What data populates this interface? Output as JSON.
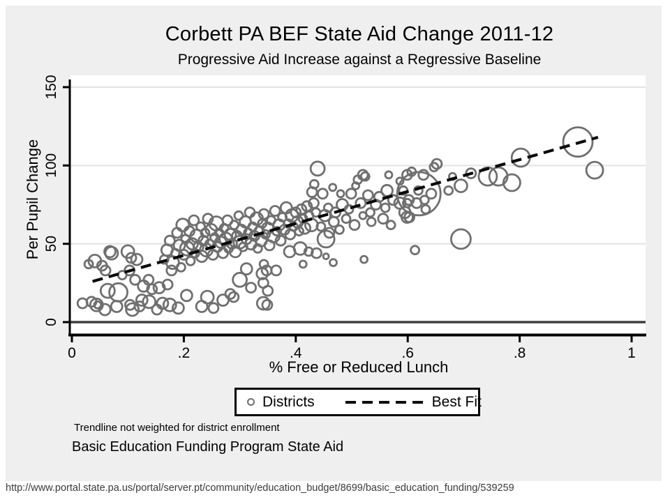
{
  "header": {
    "title": "Corbett PA BEF State Aid Change 2011-12",
    "subtitle": "Progressive Aid Increase against a Regressive Baseline"
  },
  "notes": {
    "line1": "Trendline not weighted for district enrollment",
    "line2": "Basic Education Funding Program State Aid"
  },
  "footer": {
    "url": "http://www.portal.state.pa.us/portal/server.pt/community/education_budget/8699/basic_education_funding/539259"
  },
  "colors": {
    "panel_background": "#efefef",
    "plot_background": "#ffffff",
    "marker": "#6f6f6f",
    "gridline": "#e2e2e2",
    "zero_line": "#3f3f3f",
    "axis": "#000000",
    "trendline": "#0a0a0a"
  },
  "chart_data": {
    "type": "scatter",
    "title": "Corbett PA BEF State Aid Change 2011-12",
    "subtitle": "Progressive Aid Increase against a Regressive Baseline",
    "xlabel": "% Free or Reduced Lunch",
    "ylabel": "Per Pupil Change",
    "xlim": [
      0,
      1
    ],
    "ylim": [
      0,
      150
    ],
    "x_ticks": [
      {
        "v": 0,
        "label": "0"
      },
      {
        "v": 0.2,
        "label": ".2"
      },
      {
        "v": 0.4,
        "label": ".4"
      },
      {
        "v": 0.6,
        "label": ".6"
      },
      {
        "v": 0.8,
        "label": ".8"
      },
      {
        "v": 1,
        "label": "1"
      }
    ],
    "y_ticks": [
      {
        "v": 0,
        "label": "0"
      },
      {
        "v": 50,
        "label": "50"
      },
      {
        "v": 100,
        "label": "100"
      },
      {
        "v": 150,
        "label": "150"
      }
    ],
    "grid": "horizontal-light",
    "marker_color": "#6f6f6f",
    "marker_note": "hollow circles, size proportional to district enrollment; values are [x_fraction, per_pupil_change, radius_px]",
    "points": [
      [
        0.019,
        12,
        7
      ],
      [
        0.03,
        37,
        6
      ],
      [
        0.035,
        13,
        7
      ],
      [
        0.041,
        39,
        9
      ],
      [
        0.044,
        11,
        9
      ],
      [
        0.046,
        11,
        5
      ],
      [
        0.054,
        36,
        7
      ],
      [
        0.059,
        8,
        8
      ],
      [
        0.06,
        33,
        7
      ],
      [
        0.064,
        20,
        10
      ],
      [
        0.068,
        45,
        8
      ],
      [
        0.071,
        44,
        9
      ],
      [
        0.08,
        10,
        8
      ],
      [
        0.083,
        19,
        13
      ],
      [
        0.09,
        30,
        6
      ],
      [
        0.1,
        45,
        9
      ],
      [
        0.103,
        33,
        7
      ],
      [
        0.104,
        11,
        7
      ],
      [
        0.106,
        41,
        7
      ],
      [
        0.108,
        8,
        9
      ],
      [
        0.113,
        27,
        7
      ],
      [
        0.116,
        40,
        8
      ],
      [
        0.121,
        10,
        7
      ],
      [
        0.125,
        14,
        8
      ],
      [
        0.128,
        23,
        8
      ],
      [
        0.137,
        27,
        7
      ],
      [
        0.138,
        13,
        9
      ],
      [
        0.143,
        21,
        7
      ],
      [
        0.152,
        8,
        7
      ],
      [
        0.156,
        22,
        8
      ],
      [
        0.162,
        12,
        8
      ],
      [
        0.171,
        24,
        7
      ],
      [
        0.175,
        11,
        9
      ],
      [
        0.178,
        33,
        7
      ],
      [
        0.19,
        9,
        8
      ],
      [
        0.165,
        40,
        6
      ],
      [
        0.17,
        46,
        8
      ],
      [
        0.175,
        52,
        7
      ],
      [
        0.18,
        38,
        9
      ],
      [
        0.185,
        44,
        6
      ],
      [
        0.188,
        57,
        7
      ],
      [
        0.192,
        49,
        8
      ],
      [
        0.195,
        35,
        6
      ],
      [
        0.198,
        62,
        9
      ],
      [
        0.2,
        43,
        7
      ],
      [
        0.203,
        53,
        6
      ],
      [
        0.206,
        47,
        10
      ],
      [
        0.21,
        58,
        7
      ],
      [
        0.212,
        39,
        6
      ],
      [
        0.215,
        50,
        8
      ],
      [
        0.218,
        65,
        7
      ],
      [
        0.22,
        44,
        6
      ],
      [
        0.223,
        55,
        9
      ],
      [
        0.226,
        48,
        7
      ],
      [
        0.23,
        61,
        6
      ],
      [
        0.232,
        42,
        8
      ],
      [
        0.235,
        52,
        7
      ],
      [
        0.238,
        57,
        6
      ],
      [
        0.24,
        46,
        9
      ],
      [
        0.243,
        66,
        7
      ],
      [
        0.246,
        50,
        6
      ],
      [
        0.249,
        59,
        8
      ],
      [
        0.252,
        43,
        7
      ],
      [
        0.255,
        54,
        6
      ],
      [
        0.258,
        63,
        10
      ],
      [
        0.26,
        48,
        7
      ],
      [
        0.263,
        57,
        6
      ],
      [
        0.266,
        51,
        8
      ],
      [
        0.27,
        44,
        7
      ],
      [
        0.272,
        60,
        6
      ],
      [
        0.275,
        53,
        9
      ],
      [
        0.278,
        65,
        7
      ],
      [
        0.28,
        47,
        6
      ],
      [
        0.283,
        56,
        8
      ],
      [
        0.286,
        50,
        7
      ],
      [
        0.29,
        62,
        6
      ],
      [
        0.292,
        45,
        8
      ],
      [
        0.295,
        55,
        7
      ],
      [
        0.298,
        68,
        6
      ],
      [
        0.3,
        51,
        9
      ],
      [
        0.303,
        59,
        7
      ],
      [
        0.306,
        48,
        6
      ],
      [
        0.31,
        64,
        8
      ],
      [
        0.312,
        53,
        7
      ],
      [
        0.315,
        57,
        6
      ],
      [
        0.318,
        70,
        7
      ],
      [
        0.32,
        50,
        8
      ],
      [
        0.323,
        61,
        6
      ],
      [
        0.326,
        55,
        7
      ],
      [
        0.33,
        66,
        9
      ],
      [
        0.332,
        47,
        6
      ],
      [
        0.335,
        58,
        7
      ],
      [
        0.338,
        52,
        8
      ],
      [
        0.34,
        63,
        6
      ],
      [
        0.343,
        69,
        7
      ],
      [
        0.346,
        56,
        6
      ],
      [
        0.35,
        60,
        8
      ],
      [
        0.353,
        49,
        7
      ],
      [
        0.356,
        65,
        6
      ],
      [
        0.36,
        55,
        9
      ],
      [
        0.363,
        71,
        7
      ],
      [
        0.366,
        58,
        6
      ],
      [
        0.37,
        62,
        8
      ],
      [
        0.373,
        52,
        7
      ],
      [
        0.376,
        67,
        6
      ],
      [
        0.38,
        59,
        7
      ],
      [
        0.383,
        73,
        8
      ],
      [
        0.386,
        63,
        6
      ],
      [
        0.39,
        56,
        7
      ],
      [
        0.393,
        68,
        9
      ],
      [
        0.396,
        61,
        6
      ],
      [
        0.4,
        70,
        7
      ],
      [
        0.403,
        64,
        8
      ],
      [
        0.406,
        58,
        6
      ],
      [
        0.41,
        72,
        7
      ],
      [
        0.413,
        66,
        6
      ],
      [
        0.416,
        60,
        8
      ],
      [
        0.42,
        74,
        7
      ],
      [
        0.424,
        68,
        6
      ],
      [
        0.428,
        62,
        9
      ],
      [
        0.432,
        76,
        7
      ],
      [
        0.436,
        70,
        6
      ],
      [
        0.205,
        17,
        8
      ],
      [
        0.232,
        10,
        8
      ],
      [
        0.242,
        16,
        9
      ],
      [
        0.253,
        9,
        7
      ],
      [
        0.27,
        14,
        8
      ],
      [
        0.283,
        18,
        7
      ],
      [
        0.289,
        16,
        7
      ],
      [
        0.3,
        27,
        10
      ],
      [
        0.312,
        34,
        8
      ],
      [
        0.32,
        22,
        7
      ],
      [
        0.34,
        31,
        8
      ],
      [
        0.342,
        12,
        9
      ],
      [
        0.349,
        11,
        7
      ],
      [
        0.35,
        20,
        7
      ],
      [
        0.365,
        33,
        7
      ],
      [
        0.342,
        25,
        7
      ],
      [
        0.439,
        98,
        10
      ],
      [
        0.433,
        88,
        6
      ],
      [
        0.429,
        83,
        7
      ],
      [
        0.448,
        82,
        7
      ],
      [
        0.466,
        86,
        5
      ],
      [
        0.48,
        82,
        5
      ],
      [
        0.499,
        82,
        7
      ],
      [
        0.511,
        91,
        6
      ],
      [
        0.52,
        94,
        7
      ],
      [
        0.524,
        93,
        6
      ],
      [
        0.507,
        87,
        5
      ],
      [
        0.529,
        81,
        7
      ],
      [
        0.549,
        80,
        7
      ],
      [
        0.563,
        84,
        8
      ],
      [
        0.574,
        78,
        7
      ],
      [
        0.586,
        76,
        8
      ],
      [
        0.595,
        70,
        8
      ],
      [
        0.603,
        67,
        7
      ],
      [
        0.56,
        73,
        6
      ],
      [
        0.543,
        75,
        7
      ],
      [
        0.533,
        70,
        6
      ],
      [
        0.516,
        76,
        7
      ],
      [
        0.495,
        72,
        6
      ],
      [
        0.483,
        75,
        8
      ],
      [
        0.471,
        70,
        7
      ],
      [
        0.458,
        73,
        6
      ],
      [
        0.452,
        68,
        8
      ],
      [
        0.468,
        64,
        7
      ],
      [
        0.49,
        66,
        6
      ],
      [
        0.505,
        62,
        7
      ],
      [
        0.478,
        59,
        6
      ],
      [
        0.46,
        57,
        7
      ],
      [
        0.445,
        61,
        6
      ],
      [
        0.52,
        68,
        5
      ],
      [
        0.535,
        64,
        6
      ],
      [
        0.556,
        66,
        7
      ],
      [
        0.57,
        62,
        6
      ],
      [
        0.454,
        53,
        12
      ],
      [
        0.408,
        47,
        9
      ],
      [
        0.389,
        45,
        8
      ],
      [
        0.423,
        45,
        6
      ],
      [
        0.454,
        42,
        4
      ],
      [
        0.522,
        40,
        5
      ],
      [
        0.613,
        46,
        6
      ],
      [
        0.343,
        37,
        6
      ],
      [
        0.348,
        33,
        7
      ],
      [
        0.413,
        37,
        5
      ],
      [
        0.467,
        38,
        5
      ],
      [
        0.437,
        44,
        7
      ],
      [
        0.62,
        82,
        31
      ],
      [
        0.599,
        94,
        7
      ],
      [
        0.607,
        96,
        6
      ],
      [
        0.628,
        94,
        7
      ],
      [
        0.647,
        99,
        6
      ],
      [
        0.652,
        101,
        7
      ],
      [
        0.592,
        84,
        6
      ],
      [
        0.602,
        78,
        7
      ],
      [
        0.619,
        84,
        6
      ],
      [
        0.63,
        78,
        6
      ],
      [
        0.616,
        76,
        7
      ],
      [
        0.642,
        82,
        7
      ],
      [
        0.599,
        76,
        6
      ],
      [
        0.632,
        72,
        6
      ],
      [
        0.599,
        67,
        8
      ],
      [
        0.586,
        90,
        5
      ],
      [
        0.566,
        94,
        5
      ],
      [
        0.695,
        53,
        14
      ],
      [
        0.695,
        87,
        9
      ],
      [
        0.713,
        95,
        7
      ],
      [
        0.673,
        84,
        6
      ],
      [
        0.743,
        93,
        13
      ],
      [
        0.762,
        93,
        13
      ],
      [
        0.786,
        89,
        12
      ],
      [
        0.802,
        105,
        13
      ],
      [
        0.904,
        115,
        21
      ],
      [
        0.934,
        97,
        12
      ],
      [
        0.68,
        93,
        5
      ]
    ],
    "trendline": {
      "x1": 0.037,
      "y1": 26,
      "x2": 0.94,
      "y2": 118,
      "style": "dashed",
      "color": "#0a0a0a"
    },
    "legend": {
      "position": "below-x-axis",
      "items": [
        {
          "marker": "hollow-circle",
          "label": "Districts"
        },
        {
          "marker": "dashed-line",
          "label": "Best Fit"
        }
      ]
    }
  }
}
